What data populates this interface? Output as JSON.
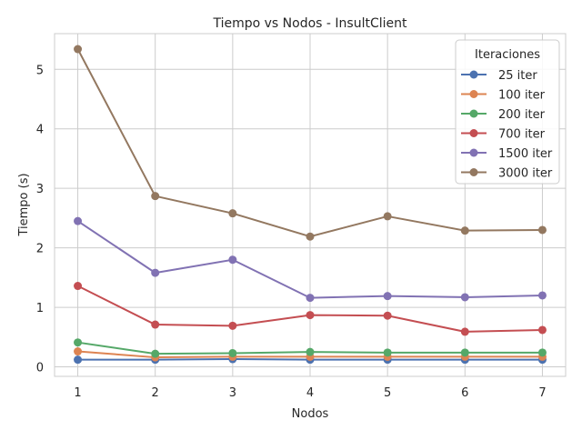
{
  "chart_data": {
    "type": "line",
    "title": "Tiempo vs Nodos - InsultClient",
    "xlabel": "Nodos",
    "ylabel": "Tiempo (s)",
    "x": [
      1,
      2,
      3,
      4,
      5,
      6,
      7
    ],
    "xlim": [
      0.7,
      7.3
    ],
    "ylim": [
      -0.16,
      5.6
    ],
    "xticks": [
      "1",
      "2",
      "3",
      "4",
      "5",
      "6",
      "7"
    ],
    "yticks": [
      "0",
      "1",
      "2",
      "3",
      "4",
      "5"
    ],
    "grid": true,
    "legend": {
      "title": "Iteraciones",
      "placement": "top-right"
    },
    "series": [
      {
        "name": "25 iter",
        "color": "#4c72b0",
        "values": [
          0.12,
          0.12,
          0.13,
          0.12,
          0.12,
          0.12,
          0.12
        ]
      },
      {
        "name": "100 iter",
        "color": "#dd8452",
        "values": [
          0.26,
          0.16,
          0.17,
          0.17,
          0.17,
          0.17,
          0.17
        ]
      },
      {
        "name": "200 iter",
        "color": "#55a868",
        "values": [
          0.41,
          0.22,
          0.23,
          0.25,
          0.24,
          0.24,
          0.24
        ]
      },
      {
        "name": "700 iter",
        "color": "#c44e52",
        "values": [
          1.36,
          0.71,
          0.69,
          0.87,
          0.86,
          0.59,
          0.62
        ]
      },
      {
        "name": "1500 iter",
        "color": "#8172b3",
        "values": [
          2.45,
          1.58,
          1.8,
          1.16,
          1.19,
          1.17,
          1.2
        ]
      },
      {
        "name": "3000 iter",
        "color": "#937860",
        "values": [
          5.34,
          2.87,
          2.58,
          2.19,
          2.53,
          2.29,
          2.3
        ]
      }
    ]
  }
}
